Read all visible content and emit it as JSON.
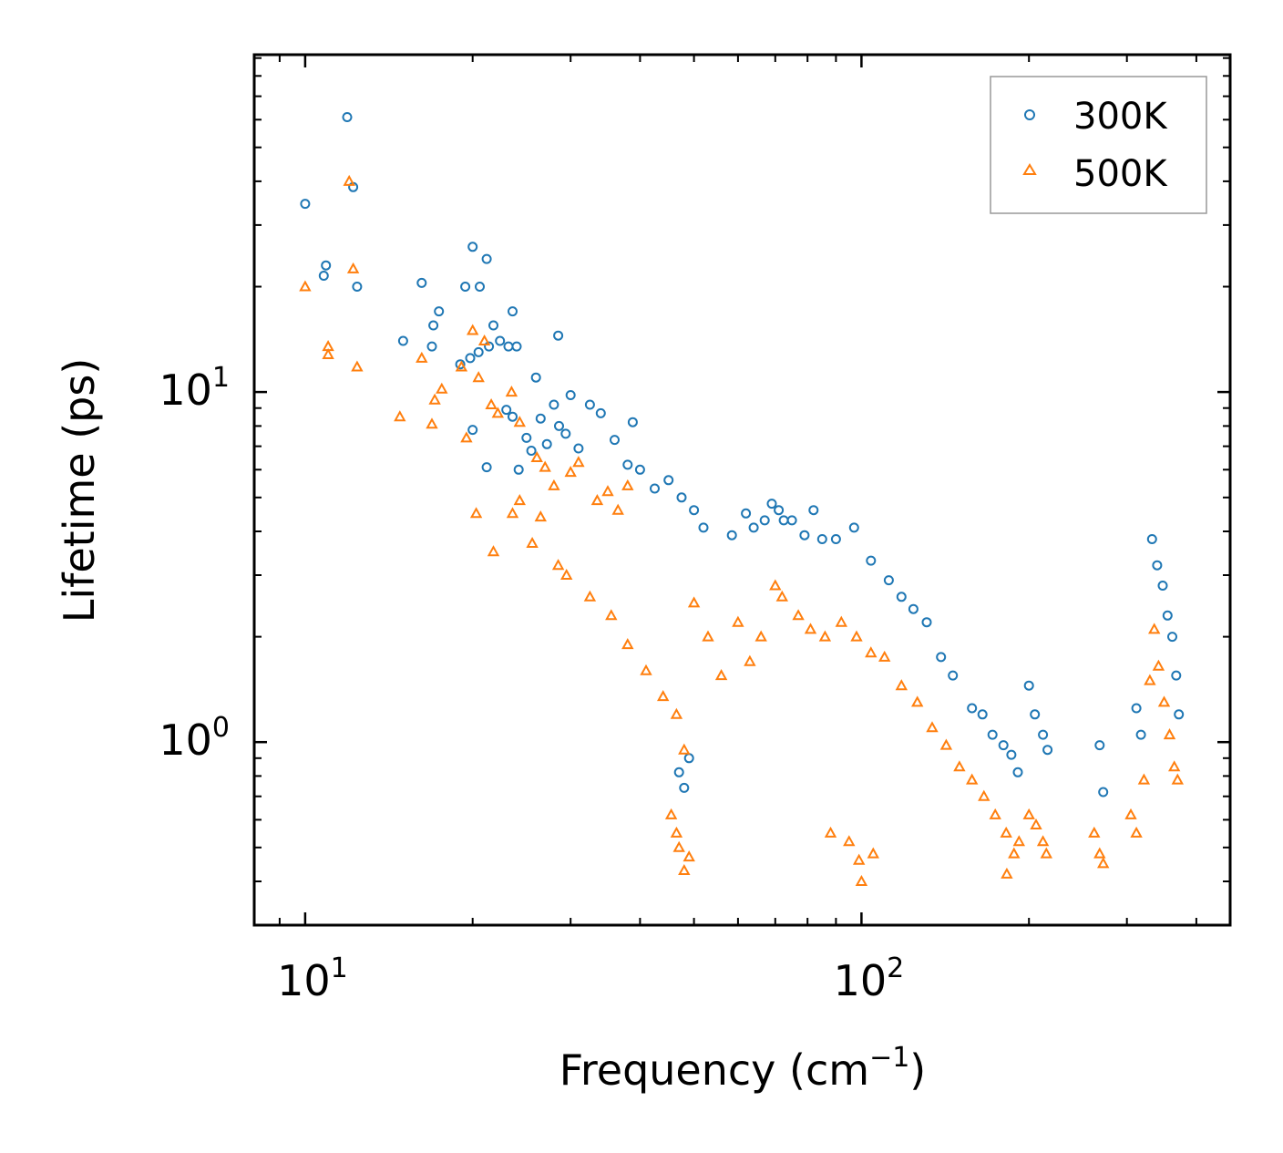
{
  "chart_data": {
    "type": "scatter",
    "xscale": "log",
    "yscale": "log",
    "xlim": [
      8.1,
      460
    ],
    "ylim": [
      0.3,
      92
    ],
    "xlabel": "Frequency (cm⁻¹)",
    "xlabel_base": "Frequency (cm",
    "xlabel_sup": "−1",
    "xlabel_close": ")",
    "ylabel": "Lifetime (ps)",
    "xticks": [
      {
        "value": 10,
        "base": "10",
        "exp": "1"
      },
      {
        "value": 100,
        "base": "10",
        "exp": "2"
      }
    ],
    "yticks": [
      {
        "value": 1,
        "base": "10",
        "exp": "0"
      },
      {
        "value": 10,
        "base": "10",
        "exp": "1"
      }
    ],
    "legend_position": "top-right",
    "series": [
      {
        "name": "300K",
        "color": "#1f77b4",
        "marker": "circle-open",
        "points": [
          [
            10.0,
            34.5
          ],
          [
            10.8,
            21.5
          ],
          [
            10.9,
            23.0
          ],
          [
            11.9,
            61.0
          ],
          [
            12.2,
            38.5
          ],
          [
            12.4,
            20.0
          ],
          [
            15.0,
            14.0
          ],
          [
            16.2,
            20.5
          ],
          [
            16.9,
            13.5
          ],
          [
            17.0,
            15.5
          ],
          [
            17.4,
            17.0
          ],
          [
            19.0,
            12.0
          ],
          [
            19.4,
            20.0
          ],
          [
            19.8,
            12.5
          ],
          [
            20.0,
            26.0
          ],
          [
            20.5,
            13.0
          ],
          [
            20.6,
            20.0
          ],
          [
            21.2,
            24.0
          ],
          [
            21.4,
            13.5
          ],
          [
            21.8,
            15.5
          ],
          [
            22.4,
            14.0
          ],
          [
            23.2,
            13.5
          ],
          [
            23.6,
            17.0
          ],
          [
            24.0,
            13.5
          ],
          [
            28.5,
            14.5
          ],
          [
            20.0,
            7.8
          ],
          [
            21.2,
            6.1
          ],
          [
            23.0,
            8.9
          ],
          [
            23.6,
            8.5
          ],
          [
            24.2,
            6.0
          ],
          [
            25.0,
            7.4
          ],
          [
            25.5,
            6.8
          ],
          [
            26.0,
            11.0
          ],
          [
            26.5,
            8.4
          ],
          [
            27.2,
            7.1
          ],
          [
            28.0,
            9.2
          ],
          [
            28.6,
            8.0
          ],
          [
            29.4,
            7.6
          ],
          [
            30.0,
            9.8
          ],
          [
            31.0,
            6.9
          ],
          [
            32.5,
            9.2
          ],
          [
            34.0,
            8.7
          ],
          [
            36.0,
            7.3
          ],
          [
            38.0,
            6.2
          ],
          [
            38.8,
            8.2
          ],
          [
            40.0,
            6.0
          ],
          [
            42.5,
            5.3
          ],
          [
            45.0,
            5.6
          ],
          [
            47.5,
            5.0
          ],
          [
            50.0,
            4.6
          ],
          [
            52.0,
            4.1
          ],
          [
            58.5,
            3.9
          ],
          [
            62.0,
            4.5
          ],
          [
            64.0,
            4.1
          ],
          [
            67.0,
            4.3
          ],
          [
            69.0,
            4.8
          ],
          [
            71.0,
            4.6
          ],
          [
            72.5,
            4.3
          ],
          [
            75.0,
            4.3
          ],
          [
            79.0,
            3.9
          ],
          [
            82.0,
            4.6
          ],
          [
            85.0,
            3.8
          ],
          [
            90.0,
            3.8
          ],
          [
            97.0,
            4.1
          ],
          [
            104.0,
            3.3
          ],
          [
            112.0,
            2.9
          ],
          [
            118.0,
            2.6
          ],
          [
            124.0,
            2.4
          ],
          [
            131.0,
            2.2
          ],
          [
            139.0,
            1.75
          ],
          [
            146.0,
            1.55
          ],
          [
            158.0,
            1.25
          ],
          [
            165.0,
            1.2
          ],
          [
            172.0,
            1.05
          ],
          [
            180.0,
            0.98
          ],
          [
            186.0,
            0.92
          ],
          [
            191.0,
            0.82
          ],
          [
            200.0,
            1.45
          ],
          [
            205.0,
            1.2
          ],
          [
            212.0,
            1.05
          ],
          [
            216.0,
            0.95
          ],
          [
            268.0,
            0.98
          ],
          [
            272.0,
            0.72
          ],
          [
            312.0,
            1.25
          ],
          [
            318.0,
            1.05
          ],
          [
            333.0,
            3.8
          ],
          [
            340.0,
            3.2
          ],
          [
            348.0,
            2.8
          ],
          [
            355.0,
            2.3
          ],
          [
            362.0,
            2.0
          ],
          [
            368.0,
            1.55
          ],
          [
            372.0,
            1.2
          ],
          [
            47.0,
            0.82
          ],
          [
            48.0,
            0.74
          ],
          [
            49.0,
            0.9
          ]
        ]
      },
      {
        "name": "500K",
        "color": "#ff7f0e",
        "marker": "triangle-open",
        "points": [
          [
            10.0,
            20.0
          ],
          [
            11.0,
            12.8
          ],
          [
            11.0,
            13.5
          ],
          [
            12.0,
            40.0
          ],
          [
            12.2,
            22.5
          ],
          [
            12.4,
            11.8
          ],
          [
            14.8,
            8.5
          ],
          [
            16.2,
            12.5
          ],
          [
            16.9,
            8.1
          ],
          [
            17.1,
            9.5
          ],
          [
            17.6,
            10.2
          ],
          [
            19.1,
            11.8
          ],
          [
            19.5,
            7.4
          ],
          [
            20.0,
            15.0
          ],
          [
            20.5,
            11.0
          ],
          [
            21.0,
            14.0
          ],
          [
            21.6,
            9.2
          ],
          [
            22.2,
            8.7
          ],
          [
            23.5,
            10.0
          ],
          [
            24.3,
            8.2
          ],
          [
            26.1,
            6.5
          ],
          [
            27.0,
            6.1
          ],
          [
            28.0,
            5.4
          ],
          [
            30.0,
            5.9
          ],
          [
            31.0,
            6.3
          ],
          [
            33.5,
            4.9
          ],
          [
            35.0,
            5.2
          ],
          [
            36.5,
            4.6
          ],
          [
            38.0,
            5.4
          ],
          [
            20.3,
            4.5
          ],
          [
            21.8,
            3.5
          ],
          [
            23.6,
            4.5
          ],
          [
            24.3,
            4.9
          ],
          [
            25.6,
            3.7
          ],
          [
            26.5,
            4.4
          ],
          [
            28.5,
            3.2
          ],
          [
            29.5,
            3.0
          ],
          [
            32.5,
            2.6
          ],
          [
            35.5,
            2.3
          ],
          [
            38.0,
            1.9
          ],
          [
            41.0,
            1.6
          ],
          [
            44.0,
            1.35
          ],
          [
            46.5,
            1.2
          ],
          [
            48.0,
            0.95
          ],
          [
            50.0,
            2.5
          ],
          [
            53.0,
            2.0
          ],
          [
            56.0,
            1.55
          ],
          [
            60.0,
            2.2
          ],
          [
            63.0,
            1.7
          ],
          [
            66.0,
            2.0
          ],
          [
            70.0,
            2.8
          ],
          [
            72.0,
            2.6
          ],
          [
            77.0,
            2.3
          ],
          [
            81.0,
            2.1
          ],
          [
            86.0,
            2.0
          ],
          [
            92.0,
            2.2
          ],
          [
            98.0,
            2.0
          ],
          [
            104.0,
            1.8
          ],
          [
            110.0,
            1.75
          ],
          [
            118.0,
            1.45
          ],
          [
            126.0,
            1.3
          ],
          [
            134.0,
            1.1
          ],
          [
            142.0,
            0.98
          ],
          [
            150.0,
            0.85
          ],
          [
            158.0,
            0.78
          ],
          [
            166.0,
            0.7
          ],
          [
            174.0,
            0.62
          ],
          [
            182.0,
            0.55
          ],
          [
            188.0,
            0.48
          ],
          [
            182.5,
            0.42
          ],
          [
            192.0,
            0.52
          ],
          [
            200.0,
            0.62
          ],
          [
            206.0,
            0.58
          ],
          [
            212.0,
            0.52
          ],
          [
            215.0,
            0.48
          ],
          [
            262.0,
            0.55
          ],
          [
            268.0,
            0.48
          ],
          [
            272.0,
            0.45
          ],
          [
            305.0,
            0.62
          ],
          [
            312.0,
            0.55
          ],
          [
            322.0,
            0.78
          ],
          [
            330.0,
            1.5
          ],
          [
            336.0,
            2.1
          ],
          [
            342.0,
            1.65
          ],
          [
            350.0,
            1.3
          ],
          [
            358.0,
            1.05
          ],
          [
            365.0,
            0.85
          ],
          [
            370.0,
            0.78
          ],
          [
            45.5,
            0.62
          ],
          [
            46.5,
            0.55
          ],
          [
            47.0,
            0.5
          ],
          [
            48.0,
            0.43
          ],
          [
            49.0,
            0.47
          ],
          [
            88.0,
            0.55
          ],
          [
            95.0,
            0.52
          ],
          [
            99.0,
            0.46
          ],
          [
            100.0,
            0.4
          ],
          [
            105.0,
            0.48
          ]
        ]
      }
    ]
  }
}
